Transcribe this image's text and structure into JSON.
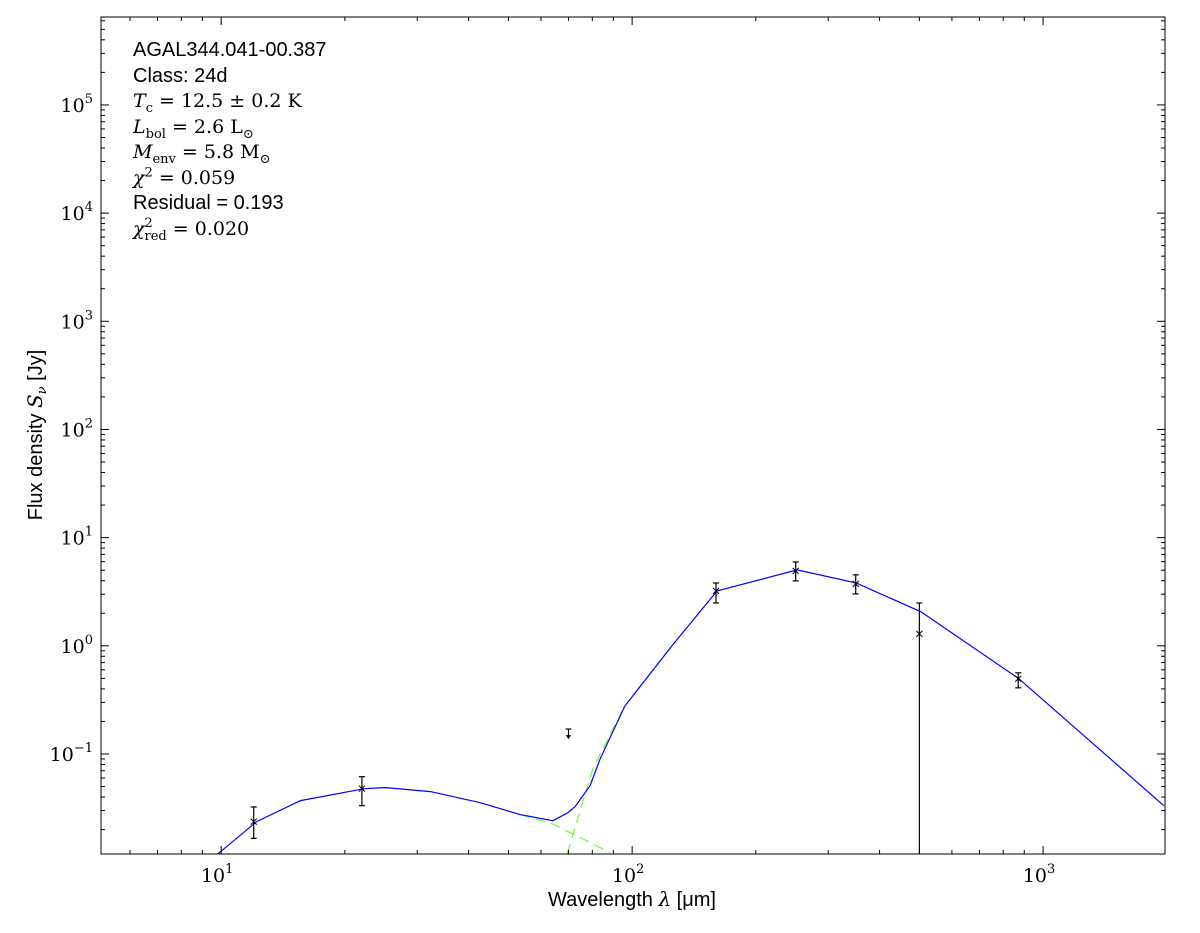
{
  "chart_data": {
    "type": "scatter",
    "xscale": "log",
    "yscale": "log",
    "xlim": [
      5.1,
      1980
    ],
    "ylim": [
      0.0119,
      650000
    ],
    "xlabel_text": "Wavelength ",
    "xlabel_math": "λ",
    "xlabel_unit": " [μm]",
    "ylabel_text": "Flux density ",
    "ylabel_math": "S",
    "ylabel_sub": "ν",
    "ylabel_unit": " [Jy]",
    "x_ticks": [
      {
        "base": "10",
        "exp": "1",
        "value": 10
      },
      {
        "base": "10",
        "exp": "2",
        "value": 100
      },
      {
        "base": "10",
        "exp": "3",
        "value": 1000
      }
    ],
    "y_ticks": [
      {
        "base": "10",
        "exp": "−1",
        "value": 0.1
      },
      {
        "base": "10",
        "exp": "0",
        "value": 1
      },
      {
        "base": "10",
        "exp": "1",
        "value": 10
      },
      {
        "base": "10",
        "exp": "2",
        "value": 100
      },
      {
        "base": "10",
        "exp": "3",
        "value": 1000
      },
      {
        "base": "10",
        "exp": "4",
        "value": 10000
      },
      {
        "base": "10",
        "exp": "5",
        "value": 100000
      }
    ],
    "grid": false,
    "data_points": [
      {
        "wavelength": 12,
        "flux": 0.0237,
        "err_low": 0.0166,
        "err_high": 0.0324
      },
      {
        "wavelength": 22,
        "flux": 0.0478,
        "err_low": 0.0333,
        "err_high": 0.0617
      },
      {
        "wavelength": 160,
        "flux": 3.22,
        "err_low": 2.49,
        "err_high": 3.81
      },
      {
        "wavelength": 250,
        "flux": 4.93,
        "err_low": 3.98,
        "err_high": 5.96
      },
      {
        "wavelength": 350,
        "flux": 3.74,
        "err_low": 3.02,
        "err_high": 4.53
      },
      {
        "wavelength": 500,
        "flux": 1.29,
        "err_low": 0,
        "err_high": 2.49
      },
      {
        "wavelength": 870,
        "flux": 0.496,
        "err_low": 0.409,
        "err_high": 0.563
      }
    ],
    "upper_limits": [
      {
        "wavelength": 70,
        "flux": 0.17
      }
    ],
    "model_total": {
      "color": "#0000ff",
      "points": [
        [
          9.78,
          0.0118
        ],
        [
          12.2,
          0.0237
        ],
        [
          15.6,
          0.0371
        ],
        [
          22.3,
          0.0478
        ],
        [
          25.1,
          0.0489
        ],
        [
          32.3,
          0.0449
        ],
        [
          42.7,
          0.0355
        ],
        [
          53.4,
          0.0275
        ],
        [
          64.2,
          0.0242
        ],
        [
          69.8,
          0.0287
        ],
        [
          72.6,
          0.0326
        ],
        [
          79.0,
          0.051
        ],
        [
          83.6,
          0.0905
        ],
        [
          96.1,
          0.279
        ],
        [
          126,
          1.04
        ],
        [
          161,
          3.22
        ],
        [
          252,
          5.03
        ],
        [
          351,
          3.82
        ],
        [
          505,
          2.06
        ],
        [
          874,
          0.496
        ],
        [
          1968,
          0.0333
        ]
      ]
    },
    "model_warm": {
      "color": "#66ff33",
      "style": "dashed",
      "points": [
        [
          53.4,
          0.0275
        ],
        [
          64.2,
          0.0225
        ],
        [
          88.3,
          0.0123
        ]
      ]
    },
    "model_cold": {
      "color": "#66ff33",
      "style": "dashed",
      "points": [
        [
          69.5,
          0.012
        ],
        [
          80.4,
          0.0747
        ],
        [
          96.1,
          0.279
        ],
        [
          126,
          1.04
        ]
      ]
    },
    "annotation": {
      "source": "AGAL344.041-00.387",
      "class_line": "Class: 24d",
      "tc": {
        "sym": "T",
        "sub": "c",
        "rest": " = 12.5 ± 0.2 K"
      },
      "lbol": {
        "sym": "L",
        "sub": "bol",
        "rest": " = 2.6 L",
        "rest_sub": "⊙"
      },
      "menv": {
        "sym": "M",
        "sub": "env",
        "rest": " = 5.8 M",
        "rest_sub": "⊙"
      },
      "chi2": {
        "sym": "χ",
        "sup": "2",
        "rest": " = 0.059"
      },
      "residual": "Residual = 0.193",
      "chi2red": {
        "sym": "χ",
        "sup": "2",
        "sub": "red",
        "rest": " = 0.020"
      }
    }
  }
}
